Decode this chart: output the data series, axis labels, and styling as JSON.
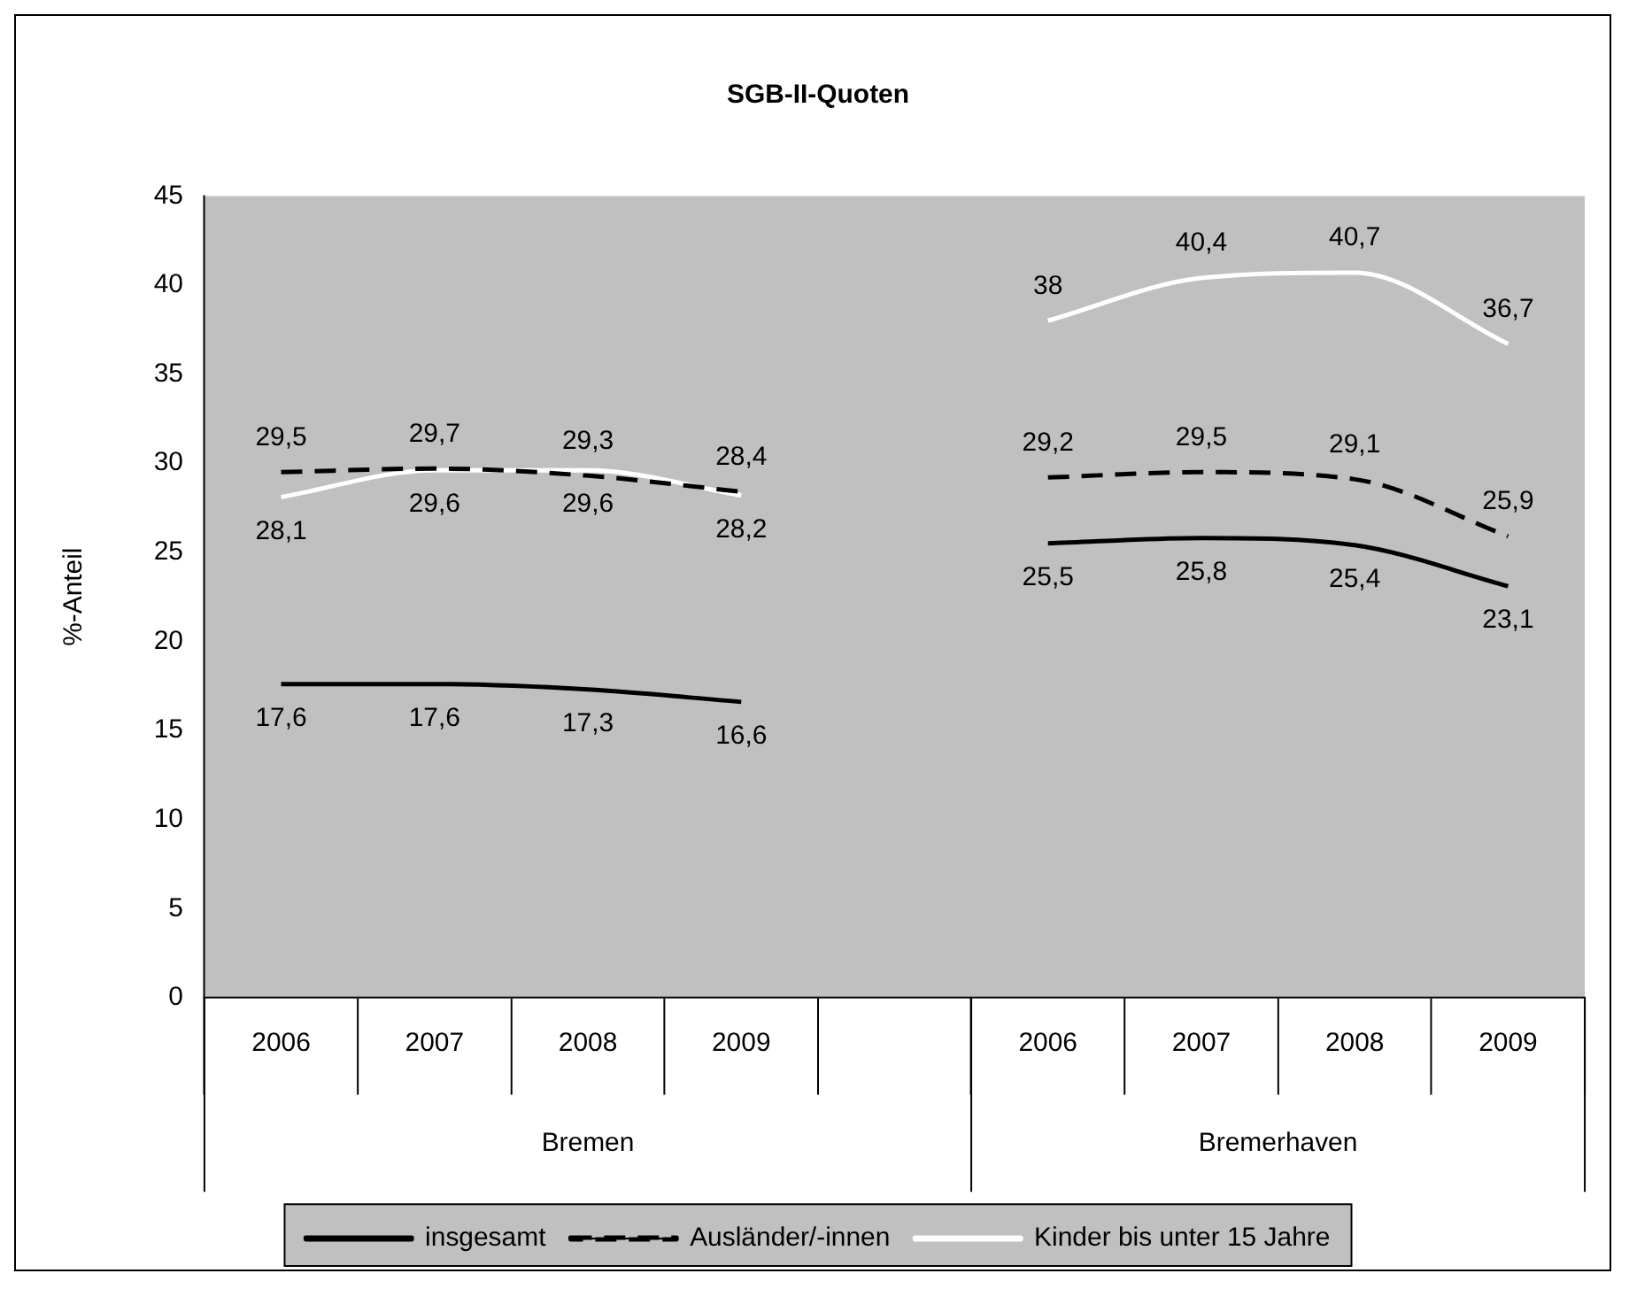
{
  "chart_data": {
    "type": "line",
    "title": "SGB-II-Quoten",
    "ylabel": "%-Anteil",
    "categories": [
      "2006",
      "2007",
      "2008",
      "2009",
      null,
      "2006",
      "2007",
      "2008",
      "2009"
    ],
    "series": [
      {
        "name": "insgesamt",
        "color": "#000000",
        "line_style": "solid",
        "values": [
          17.6,
          17.6,
          17.3,
          16.6,
          null,
          25.5,
          25.8,
          25.4,
          23.1
        ],
        "value_labels": [
          "17,6",
          "17,6",
          "17,3",
          "16,6",
          null,
          "25,5",
          "25,8",
          "25,4",
          "23,1"
        ]
      },
      {
        "name": "Ausländer/-innen",
        "color": "#000000",
        "line_style": "dashed",
        "values": [
          29.5,
          29.7,
          29.3,
          28.4,
          null,
          29.2,
          29.5,
          29.1,
          25.9
        ],
        "value_labels": [
          "29,5",
          "29,7",
          "29,3",
          "28,4",
          null,
          "29,2",
          "29,5",
          "29,1",
          "25,9"
        ]
      },
      {
        "name": "Kinder bis unter 15 Jahre",
        "color": "#ffffff",
        "line_style": "solid",
        "values": [
          28.1,
          29.6,
          29.6,
          28.2,
          null,
          38,
          40.4,
          40.7,
          36.7
        ],
        "value_labels": [
          "28,1",
          "29,6",
          "29,6",
          "28,2",
          null,
          "38",
          "40,4",
          "40,7",
          "36,7"
        ]
      }
    ],
    "annotations": [
      "Bremen",
      "Bremerhaven"
    ],
    "ylim": [
      0,
      45
    ],
    "yticks": [
      0,
      5,
      10,
      15,
      20,
      25,
      30,
      35,
      40,
      45
    ],
    "grid": false,
    "legend": "bottom",
    "marker": "none"
  }
}
